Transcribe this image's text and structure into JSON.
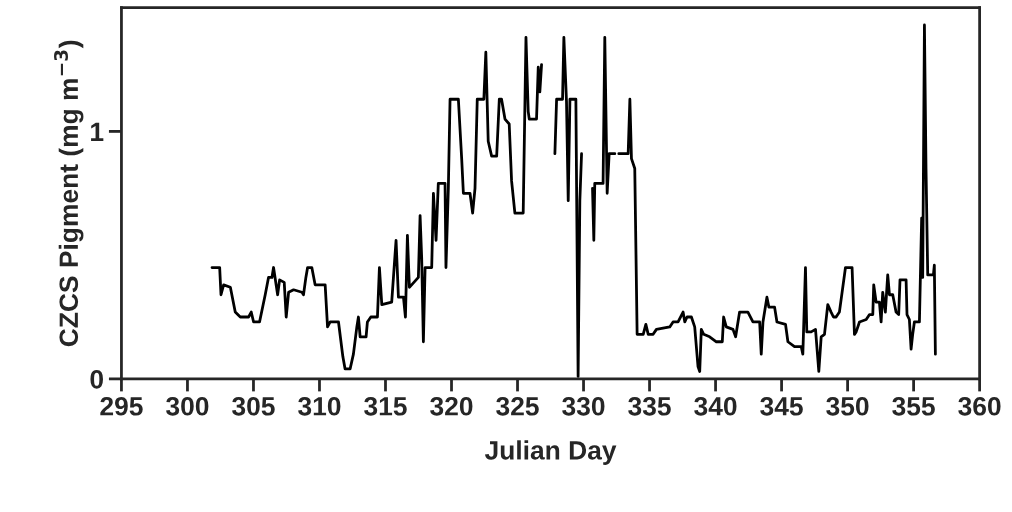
{
  "chart_data": {
    "type": "line",
    "xlabel": "Julian Day",
    "ylabel": "CZCS Pigment (mg m$^{−3}$)",
    "xlim": [
      295,
      360
    ],
    "xticks": [
      295,
      300,
      305,
      310,
      315,
      320,
      325,
      330,
      335,
      340,
      345,
      350,
      355,
      360
    ],
    "ylim": [
      0,
      1.5
    ],
    "yticks": [
      0,
      1
    ],
    "grid": false,
    "legend": false,
    "marker": "none",
    "line_style": "solid",
    "series": [
      {
        "color": "#000000",
        "x": [
          301.86,
          302.44,
          302.54,
          302.74,
          303.25,
          303.62,
          304.0,
          304.63,
          304.83,
          305.01,
          305.46,
          305.89,
          306.14,
          306.4,
          306.52,
          306.83,
          306.98,
          307.33,
          307.48,
          307.66,
          308.04,
          308.67,
          308.79,
          308.97,
          309.1,
          309.42,
          309.67,
          310.43,
          310.61,
          310.81,
          311.44,
          311.77,
          311.94,
          312.32,
          312.57,
          312.83,
          312.95,
          313.08,
          313.53,
          313.63,
          313.89,
          314.39,
          314.54,
          314.72,
          315.47,
          315.8,
          315.98,
          316.36,
          316.51,
          316.66,
          316.81,
          317.49,
          317.62,
          317.74,
          317.87,
          318.0,
          318.5,
          318.63,
          318.83,
          319.0,
          319.51,
          319.58,
          319.76,
          319.89,
          320.52,
          320.77,
          320.9,
          321.4,
          321.6,
          321.78,
          321.95,
          322.45,
          322.6,
          322.78,
          323.04,
          323.42,
          323.62,
          323.79,
          324.05,
          324.37,
          324.55,
          324.8,
          325.43,
          325.64,
          325.81,
          325.89,
          326.44,
          326.57,
          326.69,
          326.82,
          326.95,
          327.58,
          327.83,
          327.96,
          328.41,
          328.51,
          328.71,
          328.84,
          328.97,
          329.42,
          329.59,
          329.72,
          329.85,
          329.92,
          330.48,
          330.68,
          330.78,
          330.85,
          331.48,
          331.61,
          331.79,
          331.94,
          332.37,
          332.49,
          332.67,
          333.38,
          333.51,
          333.63,
          333.88,
          334.06,
          334.52,
          334.72,
          334.9,
          335.27,
          335.52,
          336.53,
          336.78,
          337.16,
          337.54,
          337.67,
          337.84,
          338.17,
          338.42,
          338.67,
          338.8,
          338.92,
          339.1,
          339.55,
          340.06,
          340.51,
          340.61,
          340.81,
          341.32,
          341.52,
          341.82,
          342.2,
          342.45,
          342.83,
          343.34,
          343.46,
          343.59,
          343.89,
          344.04,
          344.47,
          344.65,
          345.3,
          345.48,
          345.98,
          346.49,
          346.61,
          346.81,
          346.91,
          347.24,
          347.57,
          347.82,
          348.0,
          348.25,
          348.5,
          348.75,
          348.93,
          349.13,
          349.38,
          349.84,
          350.34,
          350.52,
          350.65,
          350.9,
          351.41,
          351.66,
          351.91,
          351.98,
          352.16,
          352.41,
          352.54,
          352.66,
          352.86,
          353.04,
          353.17,
          353.42,
          353.67,
          353.87,
          353.97,
          354.43,
          354.5,
          354.68,
          354.81,
          354.93,
          355.06,
          355.44,
          355.61,
          355.69,
          355.82,
          355.94,
          356.07,
          356.5,
          356.57,
          356.65
        ],
        "values": [
          0.45,
          0.45,
          0.34,
          0.38,
          0.37,
          0.27,
          0.25,
          0.25,
          0.27,
          0.23,
          0.23,
          0.34,
          0.41,
          0.41,
          0.45,
          0.34,
          0.4,
          0.39,
          0.25,
          0.35,
          0.36,
          0.35,
          0.34,
          0.41,
          0.45,
          0.45,
          0.38,
          0.38,
          0.21,
          0.23,
          0.23,
          0.09,
          0.04,
          0.04,
          0.1,
          0.21,
          0.25,
          0.17,
          0.17,
          0.23,
          0.25,
          0.25,
          0.45,
          0.3,
          0.31,
          0.56,
          0.33,
          0.33,
          0.25,
          0.58,
          0.37,
          0.41,
          0.66,
          0.49,
          0.15,
          0.45,
          0.45,
          0.75,
          0.56,
          0.79,
          0.79,
          0.45,
          0.77,
          1.13,
          1.13,
          0.89,
          0.75,
          0.75,
          0.67,
          0.77,
          1.13,
          1.13,
          1.32,
          0.96,
          0.9,
          0.9,
          1.13,
          1.13,
          1.05,
          1.03,
          0.8,
          0.67,
          0.67,
          1.38,
          1.08,
          1.05,
          1.05,
          1.26,
          1.16,
          1.27,
          null,
          null,
          0.91,
          1.13,
          1.13,
          1.38,
          1.12,
          0.72,
          1.13,
          1.13,
          0.01,
          0.72,
          0.91,
          null,
          null,
          0.77,
          0.56,
          0.79,
          0.79,
          1.38,
          0.75,
          0.91,
          0.91,
          null,
          0.91,
          0.91,
          1.13,
          0.89,
          0.85,
          0.18,
          0.18,
          0.22,
          0.18,
          0.18,
          0.2,
          0.21,
          0.23,
          0.23,
          0.27,
          0.23,
          0.25,
          0.25,
          0.21,
          0.05,
          0.03,
          0.2,
          0.18,
          0.17,
          0.15,
          0.15,
          0.25,
          0.21,
          0.2,
          0.17,
          0.27,
          0.27,
          0.27,
          0.23,
          0.23,
          0.1,
          0.23,
          0.33,
          0.29,
          0.29,
          0.23,
          0.22,
          0.15,
          0.13,
          0.13,
          0.1,
          0.45,
          0.19,
          0.19,
          0.2,
          0.03,
          0.17,
          0.18,
          0.3,
          0.27,
          0.25,
          0.25,
          0.27,
          0.45,
          0.45,
          0.18,
          0.19,
          0.23,
          0.24,
          0.26,
          0.26,
          0.38,
          0.31,
          0.31,
          0.23,
          0.35,
          0.27,
          0.42,
          0.34,
          0.34,
          0.27,
          0.26,
          0.4,
          0.4,
          0.26,
          0.24,
          0.12,
          0.18,
          0.23,
          0.23,
          0.65,
          0.41,
          1.43,
          0.85,
          0.42,
          0.42,
          0.46,
          0.1
        ]
      }
    ]
  }
}
